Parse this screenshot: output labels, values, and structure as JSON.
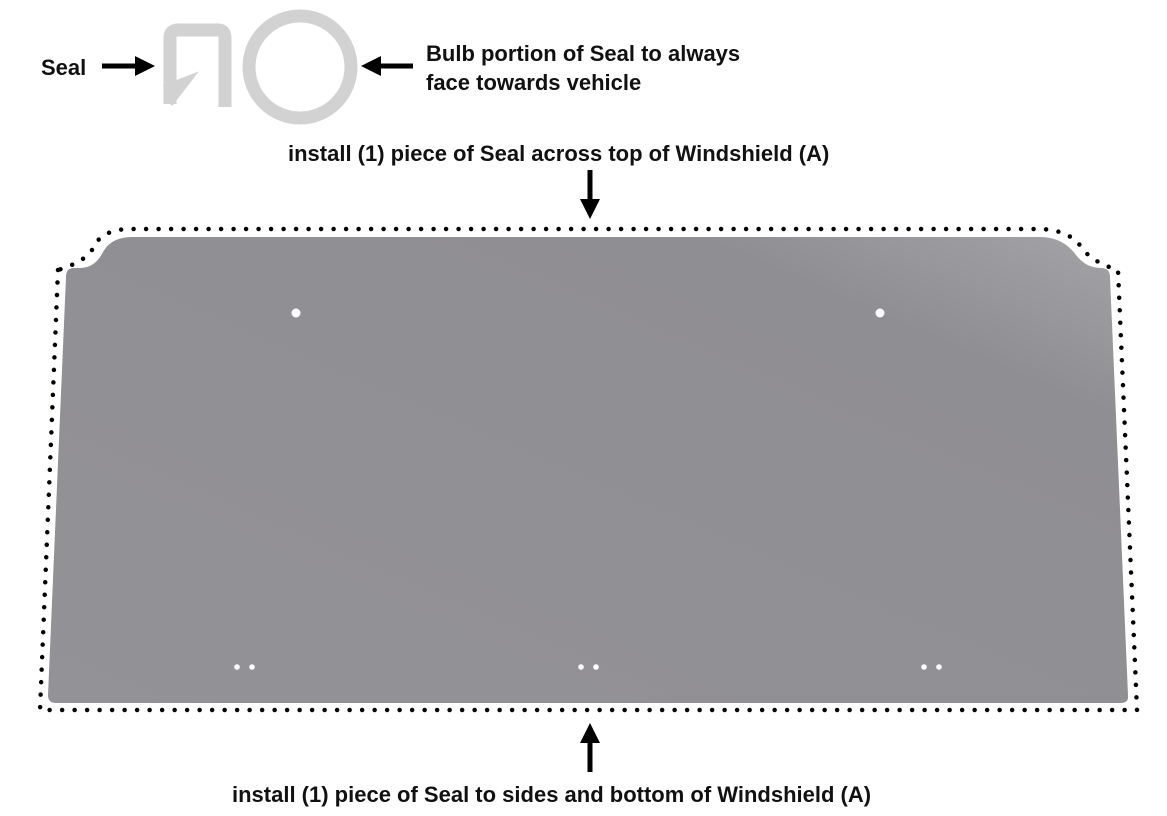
{
  "labels": {
    "seal": "Seal",
    "bulb_line1": "Bulb portion of Seal to always",
    "bulb_line2": "face towards vehicle",
    "top_instruction": "install (1) piece of Seal across top of Windshield (A)",
    "bottom_instruction": "install (1) piece of Seal to sides and bottom of Windshield (A)"
  },
  "colors": {
    "windshield": "#929195",
    "seal_profile": "#d2d2d2",
    "seal_path_dots": "#000000"
  }
}
